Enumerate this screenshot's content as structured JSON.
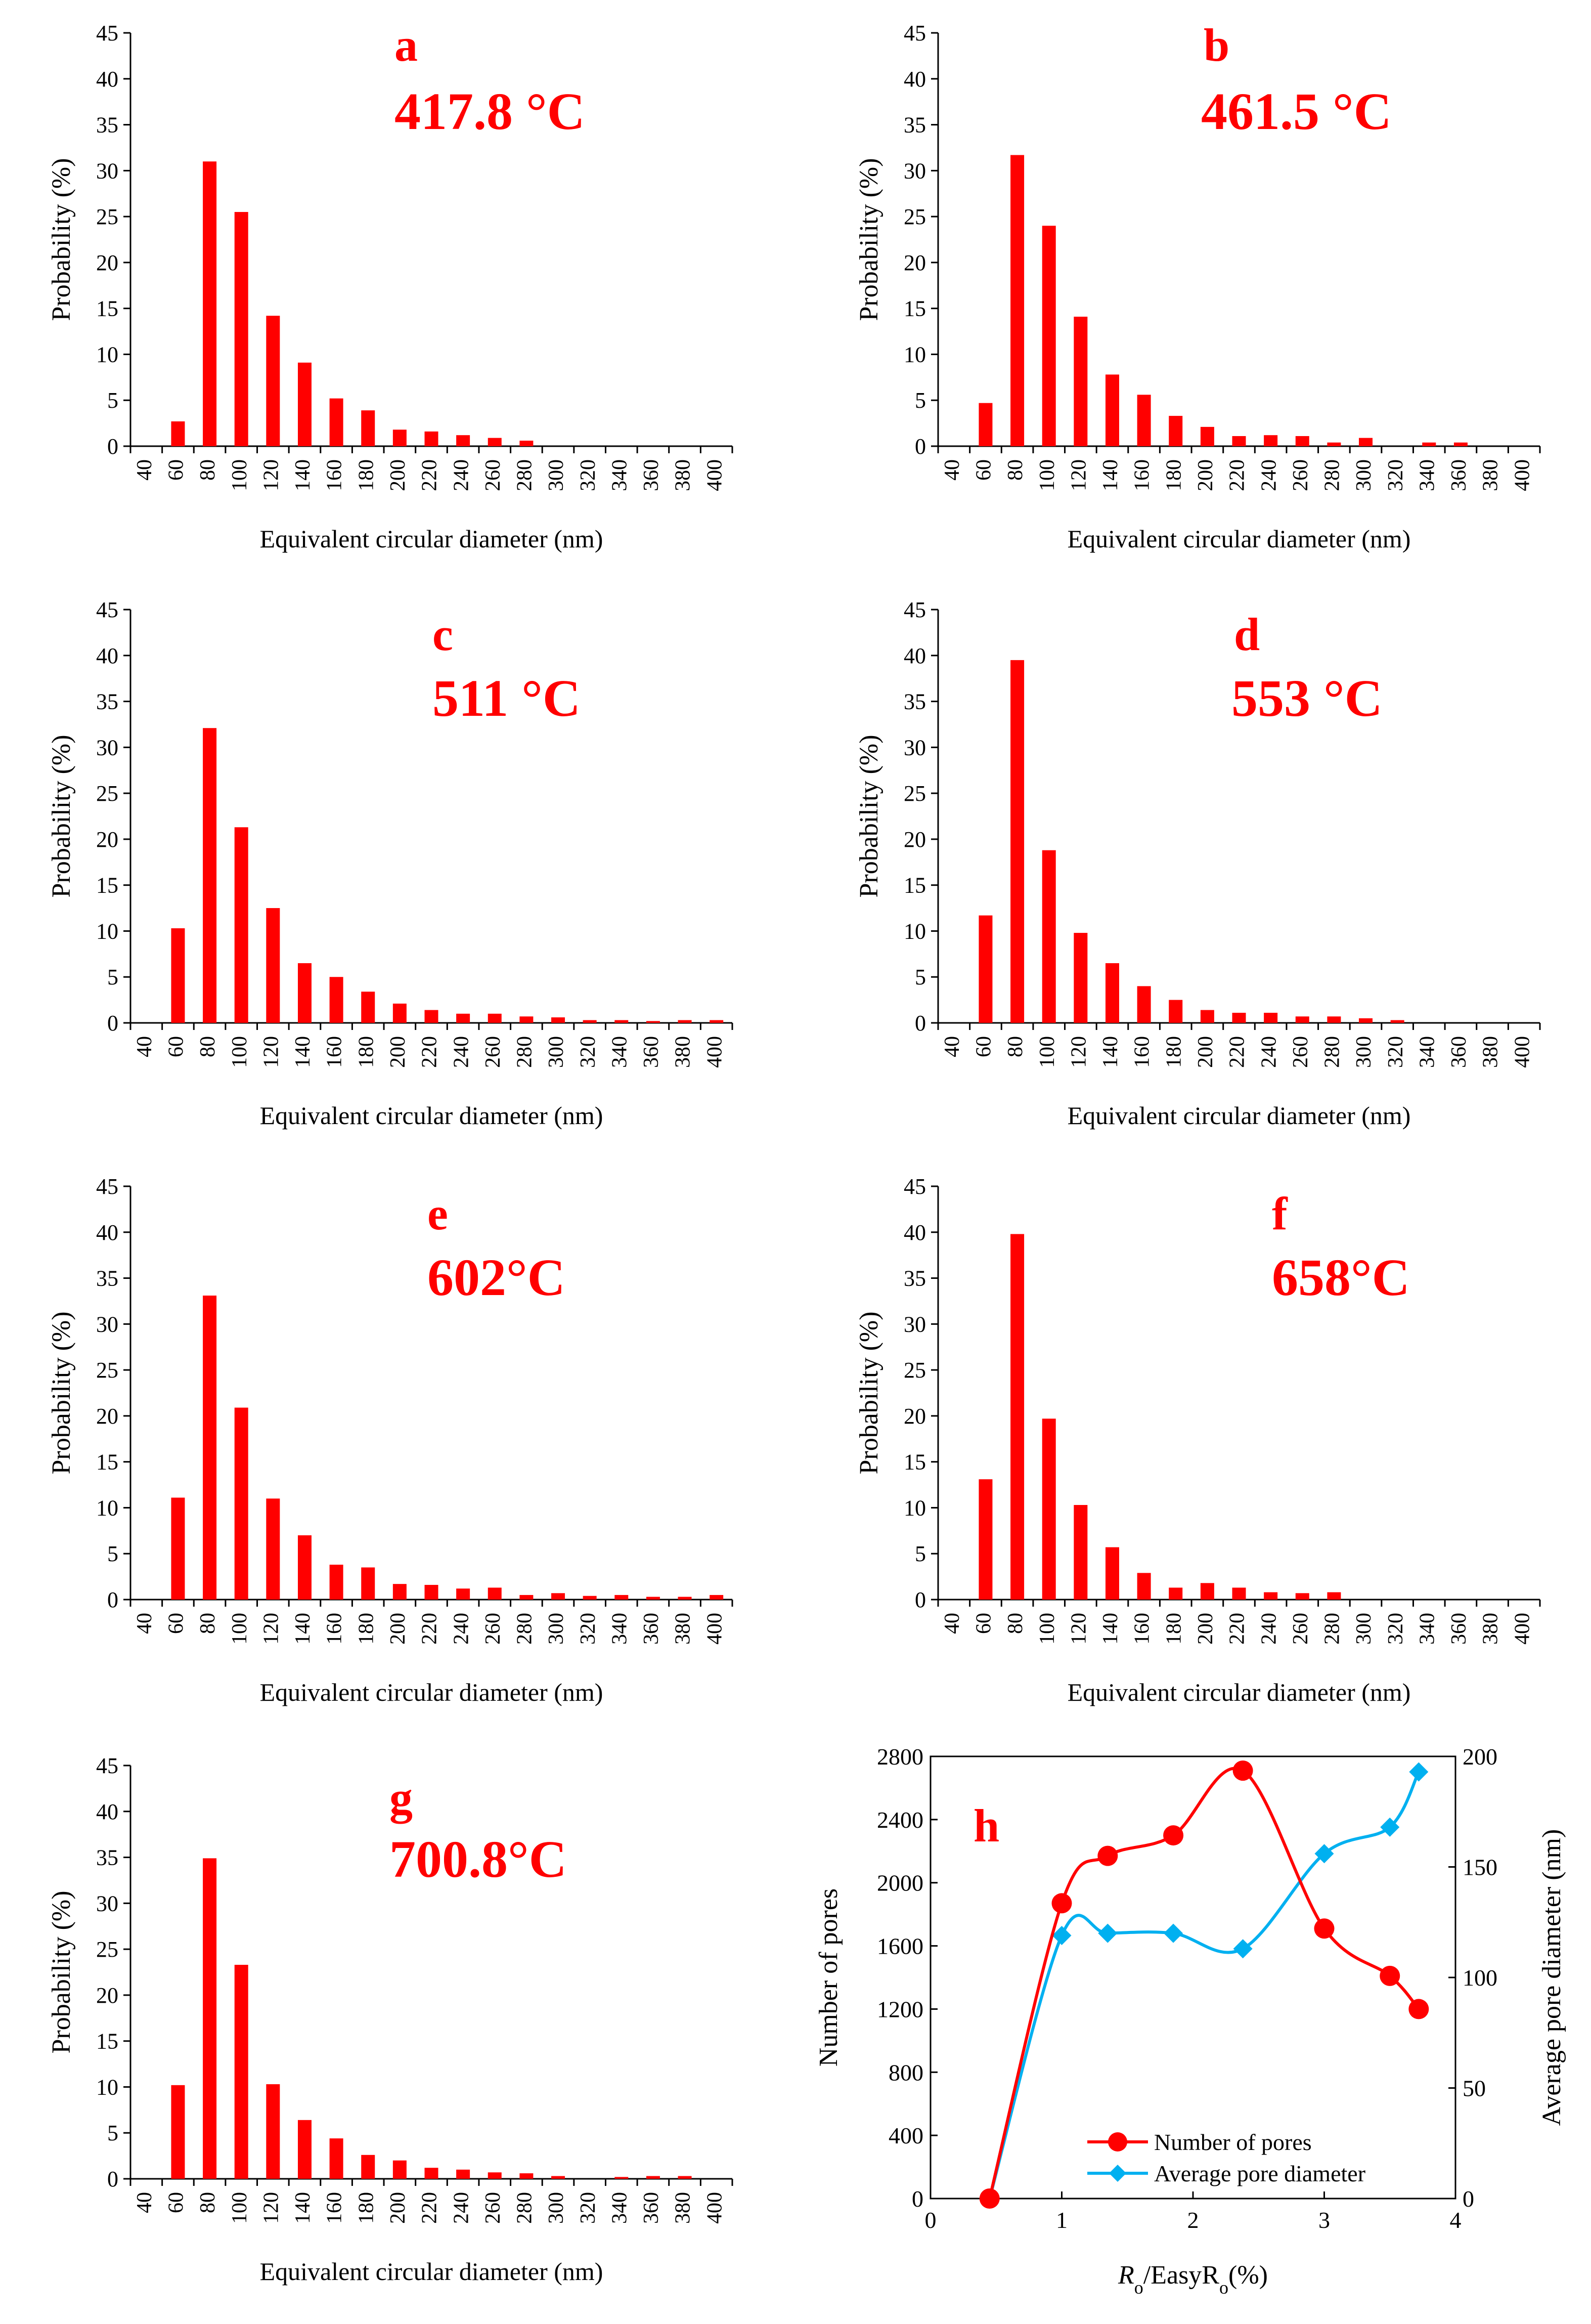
{
  "colors": {
    "bar": "#ff0000",
    "panel_label": "#ff0000",
    "axis": "#000000",
    "pores_series": "#ff0000",
    "diameter_series": "#00b0f0"
  },
  "histogram_axes": {
    "xlabel": "Equivalent circular diameter (nm)",
    "ylabel": "Probability (%)",
    "x_ticks": [
      "40",
      "60",
      "80",
      "100",
      "120",
      "140",
      "160",
      "180",
      "200",
      "220",
      "240",
      "260",
      "280",
      "300",
      "320",
      "340",
      "360",
      "380",
      "400"
    ],
    "y_ticks": [
      "0",
      "5",
      "10",
      "15",
      "20",
      "25",
      "30",
      "35",
      "40",
      "45"
    ],
    "ylim": [
      0,
      45
    ]
  },
  "chart_data": [
    {
      "type": "bar",
      "panel": "a",
      "temperature": "417.8 °C",
      "title": "a 417.8 °C",
      "xlabel": "Equivalent circular diameter (nm)",
      "ylabel": "Probability (%)",
      "ylim": [
        0,
        45
      ],
      "categories": [
        "40",
        "60",
        "80",
        "100",
        "120",
        "140",
        "160",
        "180",
        "200",
        "220",
        "240",
        "260",
        "280",
        "300",
        "320",
        "340",
        "360",
        "380",
        "400"
      ],
      "values": [
        0,
        2.7,
        31.0,
        25.5,
        14.2,
        9.1,
        5.2,
        3.9,
        1.8,
        1.6,
        1.2,
        0.9,
        0.6,
        0,
        0,
        0,
        0,
        0,
        0
      ]
    },
    {
      "type": "bar",
      "panel": "b",
      "temperature": "461.5 °C",
      "title": "b 461.5 °C",
      "xlabel": "Equivalent circular diameter (nm)",
      "ylabel": "Probability (%)",
      "ylim": [
        0,
        45
      ],
      "categories": [
        "40",
        "60",
        "80",
        "100",
        "120",
        "140",
        "160",
        "180",
        "200",
        "220",
        "240",
        "260",
        "280",
        "300",
        "320",
        "340",
        "360",
        "380",
        "400"
      ],
      "values": [
        0,
        4.7,
        31.7,
        24.0,
        14.1,
        7.8,
        5.6,
        3.3,
        2.1,
        1.1,
        1.2,
        1.1,
        0.4,
        0.9,
        0,
        0.4,
        0.4,
        0,
        0
      ]
    },
    {
      "type": "bar",
      "panel": "c",
      "temperature": "511 °C",
      "title": "c 511 °C",
      "xlabel": "Equivalent circular diameter (nm)",
      "ylabel": "Probability (%)",
      "ylim": [
        0,
        45
      ],
      "categories": [
        "40",
        "60",
        "80",
        "100",
        "120",
        "140",
        "160",
        "180",
        "200",
        "220",
        "240",
        "260",
        "280",
        "300",
        "320",
        "340",
        "360",
        "380",
        "400"
      ],
      "values": [
        0,
        10.3,
        32.1,
        21.3,
        12.5,
        6.5,
        5.0,
        3.4,
        2.1,
        1.4,
        1.0,
        1.0,
        0.7,
        0.6,
        0.3,
        0.3,
        0.2,
        0.3,
        0.3
      ]
    },
    {
      "type": "bar",
      "panel": "d",
      "temperature": "553 °C",
      "title": "d 553 °C",
      "xlabel": "Equivalent circular diameter (nm)",
      "ylabel": "Probability (%)",
      "ylim": [
        0,
        45
      ],
      "categories": [
        "40",
        "60",
        "80",
        "100",
        "120",
        "140",
        "160",
        "180",
        "200",
        "220",
        "240",
        "260",
        "280",
        "300",
        "320",
        "340",
        "360",
        "380",
        "400"
      ],
      "values": [
        0,
        11.7,
        39.5,
        18.8,
        9.8,
        6.5,
        4.0,
        2.5,
        1.4,
        1.1,
        1.1,
        0.7,
        0.7,
        0.5,
        0.3,
        0,
        0,
        0,
        0
      ]
    },
    {
      "type": "bar",
      "panel": "e",
      "temperature": "602°C",
      "title": "e 602°C",
      "xlabel": "Equivalent circular diameter (nm)",
      "ylabel": "Probability (%)",
      "ylim": [
        0,
        45
      ],
      "categories": [
        "40",
        "60",
        "80",
        "100",
        "120",
        "140",
        "160",
        "180",
        "200",
        "220",
        "240",
        "260",
        "280",
        "300",
        "320",
        "340",
        "360",
        "380",
        "400"
      ],
      "values": [
        0,
        11.1,
        33.1,
        20.9,
        11.0,
        7.0,
        3.8,
        3.5,
        1.7,
        1.6,
        1.2,
        1.3,
        0.5,
        0.7,
        0.4,
        0.5,
        0.3,
        0.3,
        0.5
      ]
    },
    {
      "type": "bar",
      "panel": "f",
      "temperature": "658°C",
      "title": "f 658°C",
      "xlabel": "Equivalent circular diameter (nm)",
      "ylabel": "Probability (%)",
      "ylim": [
        0,
        45
      ],
      "categories": [
        "40",
        "60",
        "80",
        "100",
        "120",
        "140",
        "160",
        "180",
        "200",
        "220",
        "240",
        "260",
        "280",
        "300",
        "320",
        "340",
        "360",
        "380",
        "400"
      ],
      "values": [
        0,
        13.1,
        39.8,
        19.7,
        10.3,
        5.7,
        2.9,
        1.3,
        1.8,
        1.3,
        0.8,
        0.7,
        0.8,
        0,
        0,
        0,
        0,
        0,
        0
      ]
    },
    {
      "type": "bar",
      "panel": "g",
      "temperature": "700.8°C",
      "title": "g 700.8°C",
      "xlabel": "Equivalent circular diameter (nm)",
      "ylabel": "Probability (%)",
      "ylim": [
        0,
        45
      ],
      "categories": [
        "40",
        "60",
        "80",
        "100",
        "120",
        "140",
        "160",
        "180",
        "200",
        "220",
        "240",
        "260",
        "280",
        "300",
        "320",
        "340",
        "360",
        "380",
        "400"
      ],
      "values": [
        0,
        10.2,
        34.9,
        23.3,
        10.3,
        6.4,
        4.4,
        2.6,
        2.0,
        1.2,
        1.0,
        0.7,
        0.6,
        0.3,
        0,
        0.2,
        0.3,
        0.3,
        0
      ]
    },
    {
      "type": "line",
      "panel": "h",
      "title": "h",
      "xlabel_main": "R",
      "xlabel_sub": "o",
      "xlabel_mid": "/EasyR",
      "xlabel_sub2": "o",
      "xlabel_tail": "(%)",
      "ylabel": "Number of pores",
      "y2label": "Average pore diameter (nm)",
      "xlim": [
        0,
        4
      ],
      "ylim": [
        0,
        2800
      ],
      "y2lim": [
        0,
        200
      ],
      "x_ticks": [
        "0",
        "1",
        "2",
        "3",
        "4"
      ],
      "y_ticks": [
        "0",
        "400",
        "800",
        "1200",
        "1600",
        "2000",
        "2400",
        "2800"
      ],
      "y2_ticks": [
        "0",
        "50",
        "100",
        "150",
        "200"
      ],
      "series": [
        {
          "name": "Number of pores",
          "axis": "left",
          "marker": "circle",
          "x": [
            0.45,
            1.0,
            1.35,
            1.85,
            2.38,
            3.0,
            3.5,
            3.72
          ],
          "values": [
            0,
            1870,
            2170,
            2300,
            2710,
            1710,
            1410,
            1200
          ]
        },
        {
          "name": "Average pore diameter",
          "axis": "right",
          "marker": "diamond",
          "x": [
            0.45,
            1.0,
            1.35,
            1.85,
            2.38,
            3.0,
            3.5,
            3.72
          ],
          "values": [
            0,
            119,
            120,
            120,
            113,
            156,
            168,
            193
          ]
        }
      ]
    }
  ]
}
